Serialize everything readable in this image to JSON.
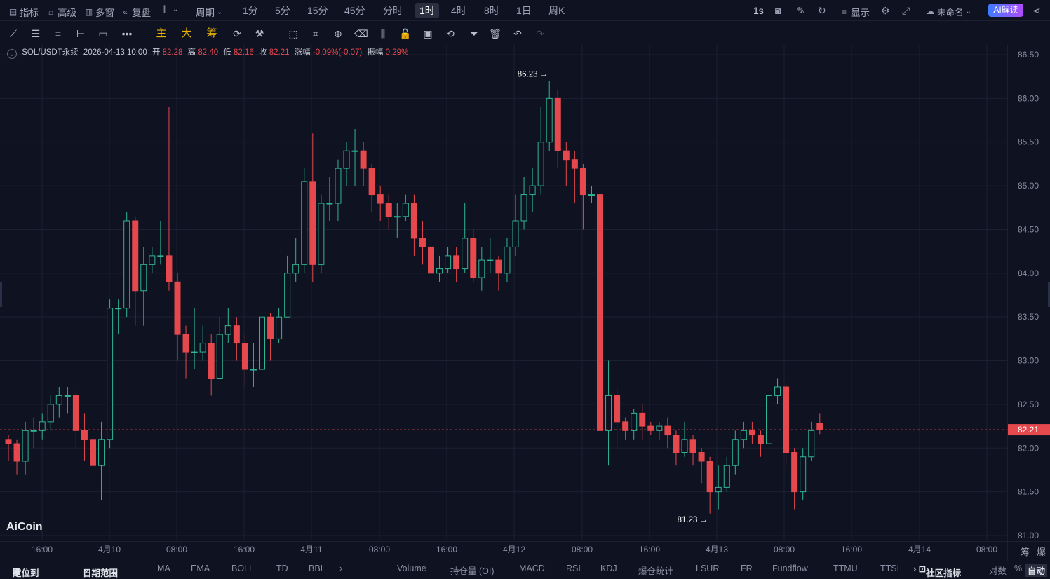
{
  "topbar": {
    "indicators": "指标",
    "advanced": "高级",
    "multiwindow": "多窗",
    "replay": "复盘",
    "period": "周期",
    "timeframes": [
      "1分",
      "5分",
      "15分",
      "45分",
      "分时",
      "1时",
      "4时",
      "8时",
      "1日",
      "周K"
    ],
    "active_timeframe": "1时",
    "interval": "1s",
    "display": "显示",
    "layout_name": "未命名",
    "ai_button": "AI解读"
  },
  "toolbar": {
    "main_label": "主",
    "big_label": "大",
    "chips_label": "筹"
  },
  "info": {
    "symbol": "SOL/USDT永续",
    "time": "2026-04-13 10:00",
    "open_label": "开",
    "open": "82.28",
    "high_label": "高",
    "high": "82.40",
    "low_label": "低",
    "low": "82.16",
    "close_label": "收",
    "close": "82.21",
    "change_label": "涨幅",
    "change": "-0.09%(-0.07)",
    "amplitude_label": "振幅",
    "amplitude": "0.29%"
  },
  "chart_data": {
    "type": "candlestick",
    "y_ticks": [
      "86.50",
      "86.00",
      "85.50",
      "85.00",
      "84.50",
      "84.00",
      "83.50",
      "83.00",
      "82.50",
      "82.00",
      "81.50",
      "81.00"
    ],
    "ylim": [
      81.0,
      86.5
    ],
    "x_ticks": [
      "16:00",
      "4月10",
      "08:00",
      "16:00",
      "4月11",
      "08:00",
      "16:00",
      "4月12",
      "08:00",
      "16:00",
      "4月13",
      "08:00",
      "16:00",
      "4月14",
      "08:00"
    ],
    "current_price": "82.21",
    "high_marker": "86.23 →",
    "low_marker": "81.23 →",
    "candles": [
      [
        82.1,
        82.05,
        82.15,
        81.85
      ],
      [
        82.05,
        81.85,
        82.1,
        81.7
      ],
      [
        81.85,
        82.2,
        82.3,
        81.7
      ],
      [
        82.2,
        82.2,
        82.35,
        82.0
      ],
      [
        82.2,
        82.3,
        82.4,
        82.1
      ],
      [
        82.3,
        82.5,
        82.6,
        82.2
      ],
      [
        82.5,
        82.6,
        82.7,
        82.35
      ],
      [
        82.6,
        82.6,
        82.7,
        82.4
      ],
      [
        82.6,
        82.2,
        82.65,
        82.0
      ],
      [
        82.2,
        82.1,
        82.4,
        81.85
      ],
      [
        82.1,
        81.8,
        82.3,
        81.5
      ],
      [
        81.8,
        82.1,
        82.3,
        81.4
      ],
      [
        82.1,
        83.6,
        83.7,
        82.0
      ],
      [
        83.6,
        83.6,
        83.7,
        83.3
      ],
      [
        83.6,
        84.6,
        84.7,
        83.5
      ],
      [
        84.6,
        83.8,
        84.65,
        83.4
      ],
      [
        83.8,
        84.1,
        84.3,
        83.4
      ],
      [
        84.1,
        84.2,
        84.3,
        84.0
      ],
      [
        84.2,
        84.2,
        84.6,
        84.1
      ],
      [
        84.2,
        83.9,
        85.9,
        83.8
      ],
      [
        83.9,
        83.3,
        84.0,
        83.0
      ],
      [
        83.3,
        83.1,
        83.4,
        82.8
      ],
      [
        83.1,
        83.1,
        83.6,
        82.9
      ],
      [
        83.1,
        83.2,
        83.4,
        83.0
      ],
      [
        83.2,
        82.8,
        83.3,
        82.6
      ],
      [
        82.8,
        83.3,
        83.5,
        82.8
      ],
      [
        83.3,
        83.4,
        83.6,
        83.2
      ],
      [
        83.4,
        83.2,
        83.5,
        83.0
      ],
      [
        83.2,
        82.9,
        83.3,
        82.7
      ],
      [
        82.9,
        82.9,
        83.2,
        82.7
      ],
      [
        82.9,
        83.5,
        83.6,
        82.9
      ],
      [
        83.5,
        83.25,
        83.55,
        83.0
      ],
      [
        83.25,
        83.5,
        83.6,
        83.2
      ],
      [
        83.5,
        84.0,
        84.2,
        83.5
      ],
      [
        84.0,
        84.1,
        84.4,
        83.9
      ],
      [
        84.1,
        85.05,
        85.2,
        84.0
      ],
      [
        85.05,
        84.1,
        85.6,
        83.9
      ],
      [
        84.1,
        84.8,
        84.9,
        84.0
      ],
      [
        84.8,
        84.8,
        85.1,
        84.6
      ],
      [
        84.8,
        85.2,
        85.3,
        84.6
      ],
      [
        85.2,
        85.4,
        85.5,
        85.0
      ],
      [
        85.4,
        85.4,
        85.65,
        85.0
      ],
      [
        85.4,
        85.2,
        85.5,
        85.0
      ],
      [
        85.2,
        84.9,
        85.25,
        84.7
      ],
      [
        84.9,
        84.8,
        85.0,
        84.6
      ],
      [
        84.8,
        84.65,
        84.9,
        84.5
      ],
      [
        84.65,
        84.65,
        84.8,
        84.4
      ],
      [
        84.65,
        84.8,
        84.9,
        84.6
      ],
      [
        84.8,
        84.4,
        84.9,
        84.2
      ],
      [
        84.4,
        84.3,
        84.6,
        84.1
      ],
      [
        84.3,
        84.0,
        84.4,
        83.9
      ],
      [
        84.0,
        84.05,
        84.2,
        83.9
      ],
      [
        84.05,
        84.2,
        84.3,
        84.0
      ],
      [
        84.2,
        84.05,
        84.3,
        83.9
      ],
      [
        84.05,
        84.4,
        84.8,
        84.0
      ],
      [
        84.4,
        83.95,
        84.5,
        83.9
      ],
      [
        83.95,
        84.15,
        84.3,
        83.8
      ],
      [
        84.15,
        84.15,
        84.4,
        84.0
      ],
      [
        84.15,
        84.0,
        84.2,
        83.8
      ],
      [
        84.0,
        84.3,
        84.4,
        83.9
      ],
      [
        84.3,
        84.6,
        84.9,
        84.2
      ],
      [
        84.6,
        84.9,
        85.1,
        84.5
      ],
      [
        84.9,
        85.0,
        85.2,
        84.7
      ],
      [
        85.0,
        85.5,
        85.9,
        84.9
      ],
      [
        85.5,
        86.0,
        86.2,
        85.4
      ],
      [
        86.0,
        85.4,
        86.1,
        85.2
      ],
      [
        85.4,
        85.3,
        85.5,
        85.0
      ],
      [
        85.3,
        85.2,
        85.4,
        84.8
      ],
      [
        85.2,
        84.9,
        85.25,
        84.5
      ],
      [
        84.9,
        84.9,
        85.0,
        84.8
      ],
      [
        84.9,
        82.2,
        84.95,
        82.1
      ],
      [
        82.2,
        82.6,
        83.0,
        81.8
      ],
      [
        82.6,
        82.3,
        82.7,
        82.0
      ],
      [
        82.3,
        82.2,
        82.35,
        82.1
      ],
      [
        82.2,
        82.4,
        82.45,
        82.1
      ],
      [
        82.4,
        82.25,
        82.5,
        82.1
      ],
      [
        82.25,
        82.2,
        82.3,
        82.15
      ],
      [
        82.2,
        82.25,
        82.3,
        82.1
      ],
      [
        82.25,
        82.15,
        82.35,
        82.0
      ],
      [
        82.15,
        81.95,
        82.2,
        81.8
      ],
      [
        81.95,
        82.1,
        82.3,
        81.9
      ],
      [
        82.1,
        81.95,
        82.15,
        81.8
      ],
      [
        81.95,
        81.85,
        82.0,
        81.6
      ],
      [
        81.85,
        81.5,
        81.9,
        81.25
      ],
      [
        81.5,
        81.55,
        81.8,
        81.3
      ],
      [
        81.55,
        81.8,
        81.9,
        81.5
      ],
      [
        81.8,
        82.1,
        82.2,
        81.7
      ],
      [
        82.1,
        82.2,
        82.3,
        82.0
      ],
      [
        82.2,
        82.15,
        82.3,
        82.05
      ],
      [
        82.15,
        82.05,
        82.2,
        81.9
      ],
      [
        82.05,
        82.6,
        82.8,
        82.0
      ],
      [
        82.6,
        82.7,
        82.8,
        82.5
      ],
      [
        82.7,
        81.95,
        82.75,
        81.8
      ],
      [
        81.95,
        81.5,
        82.0,
        81.3
      ],
      [
        81.5,
        81.9,
        82.0,
        81.4
      ],
      [
        81.9,
        82.2,
        82.3,
        81.85
      ],
      [
        82.28,
        82.21,
        82.4,
        82.16
      ]
    ]
  },
  "bottom": {
    "locate": "定位到",
    "date_range": "日期范围",
    "indicators": [
      "MA",
      "EMA",
      "BOLL",
      "TD",
      "BBI"
    ],
    "sub_indicators": [
      "Volume",
      "持仓量 (OI)",
      "MACD",
      "RSI",
      "KDJ",
      "爆仓统计",
      "LSUR",
      "FR",
      "Fundflow",
      "TTMU",
      "TTSI"
    ],
    "community": "社区指标",
    "log": "对数",
    "percent": "%",
    "auto": "自动"
  },
  "right_panel": {
    "chips": "筹",
    "burst": "爆"
  },
  "logo": "AiCoin"
}
